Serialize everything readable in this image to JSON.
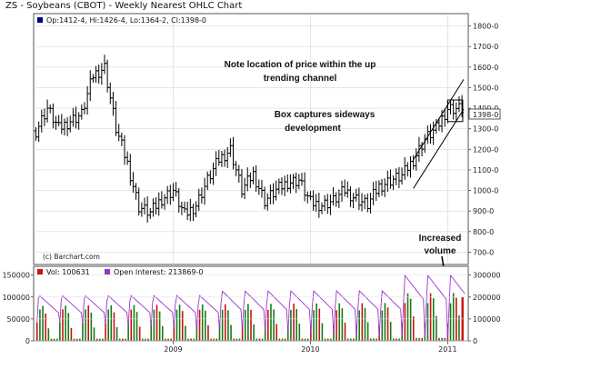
{
  "title": "ZS - Soybeans (CBOT) - Weekly Nearest OHLC Chart",
  "legend": {
    "ohlc": "Op:1412-4, Hi:1426-4, Lo:1364-2, Cl:1398-0"
  },
  "credit": "(c) Barchart.com",
  "last_price_label": "1398-0",
  "annotations": {
    "channel_line1": "Note location of price within the up",
    "channel_line2": "trending channel",
    "box_line1": "Box captures sideways",
    "box_line2": "development",
    "volume_line1": "Increased",
    "volume_line2": "volume"
  },
  "volume_legend": {
    "vol": "Vol: 100631",
    "oi": "Open Interest: 213869-0"
  },
  "colors": {
    "up_bar": "#1a7a1a",
    "down_bar": "#cc1111",
    "oi_line": "#9933cc",
    "ohlc": "#000000",
    "legend_square": "#000080"
  },
  "chart_data": [
    {
      "type": "ohlc",
      "title": "ZS - Soybeans (CBOT) - Weekly Nearest OHLC Chart",
      "x_tick_labels": [
        "2009",
        "2010",
        "2011"
      ],
      "y_tick_labels": [
        "700-0",
        "800-0",
        "900-0",
        "1000-0",
        "1100-0",
        "1200-0",
        "1300-0",
        "1400-0",
        "1500-0",
        "1600-0",
        "1700-0",
        "1800-0"
      ],
      "ylim": [
        640,
        1860
      ],
      "x": [
        "2008-01",
        "2008-02",
        "2008-03",
        "2008-04",
        "2008-05",
        "2008-06",
        "2008-07",
        "2008-08",
        "2008-09",
        "2008-10",
        "2008-11",
        "2008-12",
        "2009-01",
        "2009-02",
        "2009-03",
        "2009-04",
        "2009-05",
        "2009-06",
        "2009-07",
        "2009-08",
        "2009-09",
        "2009-10",
        "2009-11",
        "2009-12",
        "2010-01",
        "2010-02",
        "2010-03",
        "2010-04",
        "2010-05",
        "2010-06",
        "2010-07",
        "2010-08",
        "2010-09",
        "2010-10",
        "2010-11",
        "2010-12",
        "2011-01",
        "2011-02"
      ],
      "close": [
        1290,
        1400,
        1300,
        1340,
        1370,
        1560,
        1600,
        1300,
        1130,
        920,
        890,
        960,
        1000,
        880,
        930,
        1050,
        1150,
        1200,
        1000,
        1080,
        950,
        1000,
        1040,
        1050,
        940,
        930,
        950,
        1000,
        960,
        930,
        1020,
        1050,
        1070,
        1150,
        1250,
        1300,
        1400,
        1398
      ],
      "last_price": "1398-0",
      "trend_channel": {
        "lower": [
          [
            "2010-10",
            1010
          ],
          [
            "2011-02",
            1395
          ]
        ],
        "upper": [
          [
            "2010-10",
            1150
          ],
          [
            "2011-02",
            1540
          ]
        ]
      },
      "consolidation_box": {
        "from": "2011-01",
        "to": "2011-02",
        "low": 1335,
        "high": 1440
      }
    },
    {
      "type": "bar",
      "series": [
        {
          "name": "Vol",
          "last": 100631
        },
        {
          "name": "Open Interest",
          "last": 213869
        }
      ],
      "left_axis_labels": [
        "0",
        "50000",
        "100000",
        "150000"
      ],
      "right_axis_labels": [
        "0",
        "100000",
        "200000",
        "300000"
      ]
    }
  ]
}
